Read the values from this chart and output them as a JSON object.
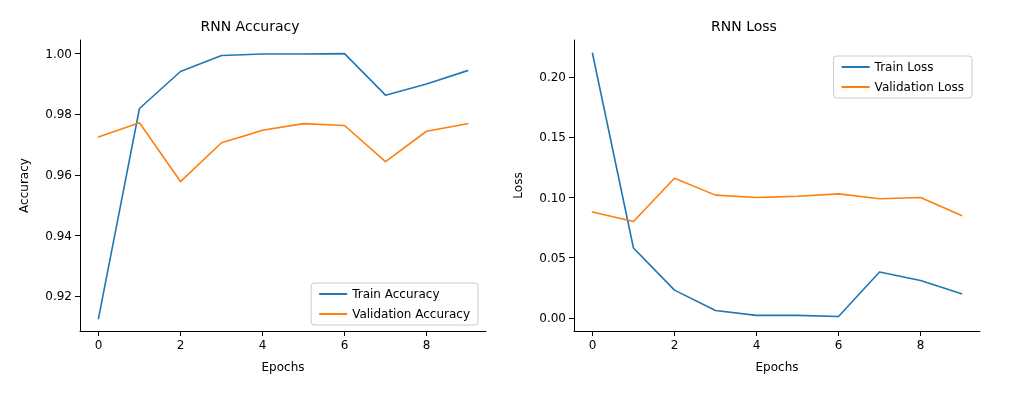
{
  "chart_data": [
    {
      "type": "line",
      "title": "RNN Accuracy",
      "xlabel": "Epochs",
      "ylabel": "Accuracy",
      "x": [
        0,
        1,
        2,
        3,
        4,
        5,
        6,
        7,
        8,
        9
      ],
      "xlim": [
        -0.45,
        9.45
      ],
      "xticks": [
        0,
        2,
        4,
        6,
        8
      ],
      "ylim": [
        0.9085,
        1.0045
      ],
      "yticks": [
        {
          "value": 0.92,
          "label": "0.92"
        },
        {
          "value": 0.94,
          "label": "0.94"
        },
        {
          "value": 0.96,
          "label": "0.96"
        },
        {
          "value": 0.98,
          "label": "0.98"
        },
        {
          "value": 1.0,
          "label": "1.00"
        }
      ],
      "legend": "bottom right",
      "grid": false,
      "series": [
        {
          "name": "Train Accuracy",
          "color": "#1f77b4",
          "values": [
            0.9126,
            0.9819,
            0.9941,
            0.9994,
            0.9999,
            0.9999,
            1.0,
            0.9863,
            0.99,
            0.9944
          ]
        },
        {
          "name": "Validation Accuracy",
          "color": "#ff7f0e",
          "values": [
            0.9725,
            0.9772,
            0.9578,
            0.9706,
            0.9747,
            0.9769,
            0.9763,
            0.9644,
            0.9744,
            0.9769
          ]
        }
      ]
    },
    {
      "type": "line",
      "title": "RNN Loss",
      "xlabel": "Epochs",
      "ylabel": "Loss",
      "x": [
        0,
        1,
        2,
        3,
        4,
        5,
        6,
        7,
        8,
        9
      ],
      "xlim": [
        -0.45,
        9.45
      ],
      "xticks": [
        0,
        2,
        4,
        6,
        8
      ],
      "ylim": [
        -0.011,
        0.231
      ],
      "yticks": [
        {
          "value": 0,
          "label": "0.00"
        },
        {
          "value": 0.05,
          "label": "0.05"
        },
        {
          "value": 0.1,
          "label": "0.10"
        },
        {
          "value": 0.15,
          "label": "0.15"
        },
        {
          "value": 0.2,
          "label": "0.20"
        }
      ],
      "legend": "top right",
      "grid": false,
      "series": [
        {
          "name": "Train Loss",
          "color": "#1f77b4",
          "values": [
            0.22,
            0.058,
            0.023,
            0.006,
            0.002,
            0.002,
            0.001,
            0.038,
            0.031,
            0.02
          ]
        },
        {
          "name": "Validation Loss",
          "color": "#ff7f0e",
          "values": [
            0.088,
            0.08,
            0.116,
            0.102,
            0.1,
            0.101,
            0.103,
            0.099,
            0.1,
            0.085
          ]
        }
      ]
    }
  ]
}
